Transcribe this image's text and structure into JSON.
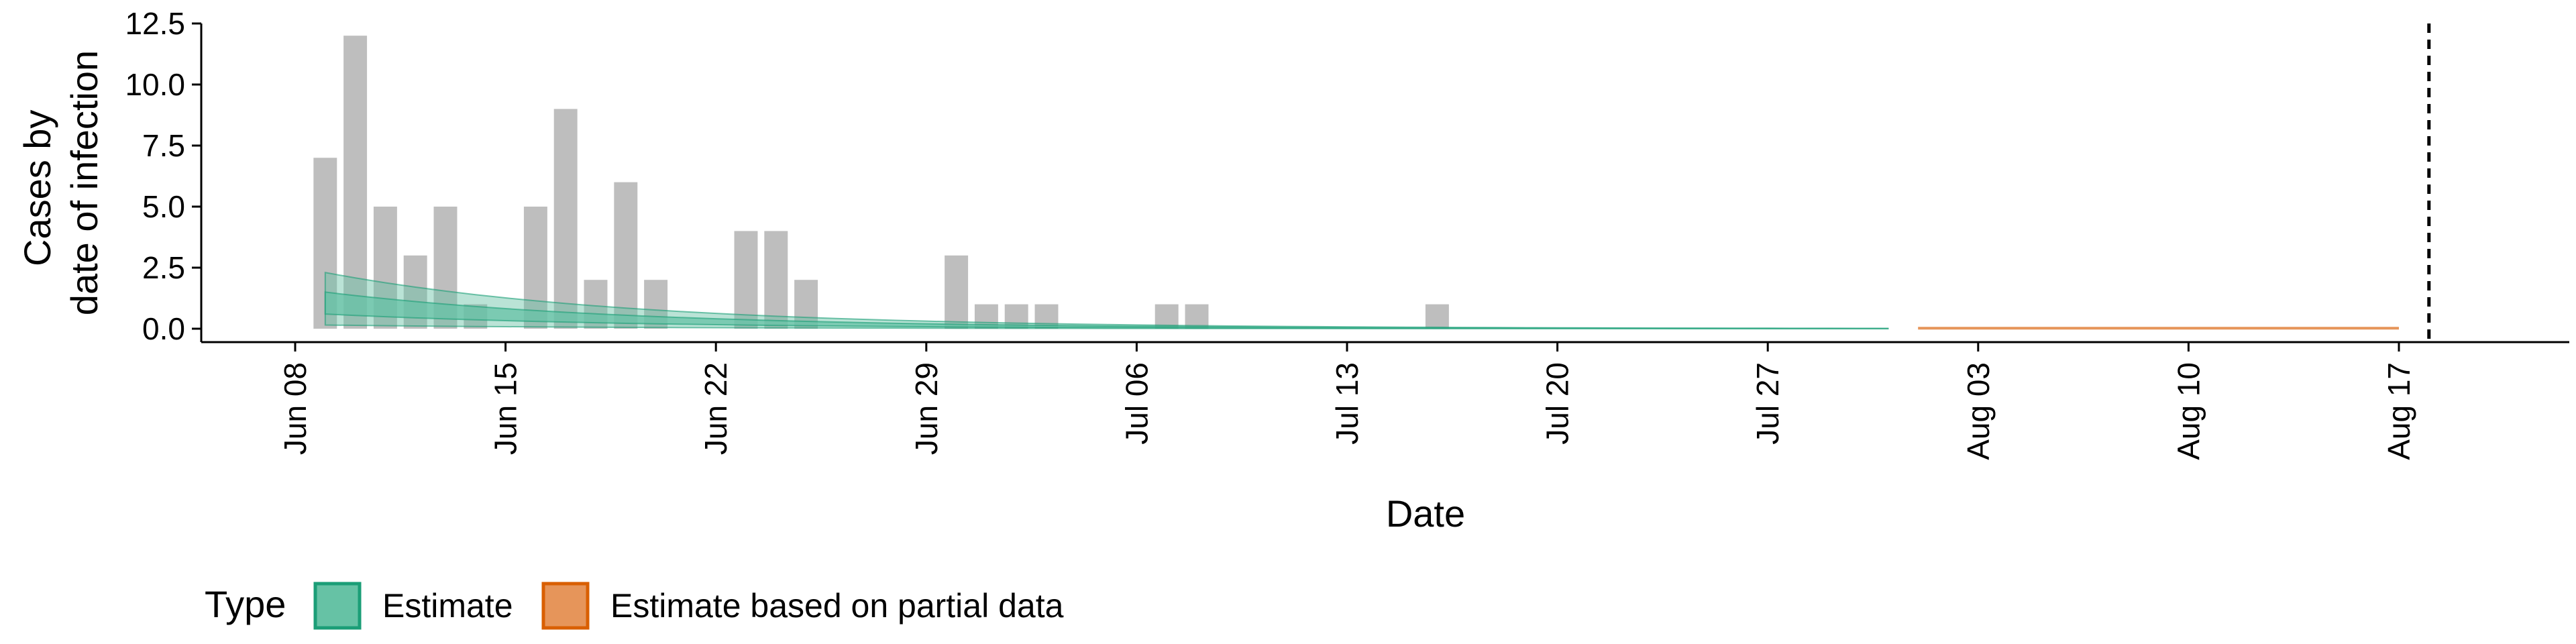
{
  "chart_data": {
    "type": "bar",
    "xlabel": "Date",
    "ylabel_lines": [
      "Cases by",
      "date of infection"
    ],
    "ylim": [
      0,
      12.5
    ],
    "y_ticks": [
      {
        "value": 0,
        "label": "0.0"
      },
      {
        "value": 2.5,
        "label": "2.5"
      },
      {
        "value": 5,
        "label": "5.0"
      },
      {
        "value": 7.5,
        "label": "7.5"
      },
      {
        "value": 10,
        "label": "10.0"
      },
      {
        "value": 12.5,
        "label": "12.5"
      }
    ],
    "x_range": [
      "2020-06-08",
      "2020-08-22"
    ],
    "x_ticks": [
      {
        "date": "2020-06-08",
        "label": "Jun 08"
      },
      {
        "date": "2020-06-15",
        "label": "Jun 15"
      },
      {
        "date": "2020-06-22",
        "label": "Jun 22"
      },
      {
        "date": "2020-06-29",
        "label": "Jun 29"
      },
      {
        "date": "2020-07-06",
        "label": "Jul 06"
      },
      {
        "date": "2020-07-13",
        "label": "Jul 13"
      },
      {
        "date": "2020-07-20",
        "label": "Jul 20"
      },
      {
        "date": "2020-07-27",
        "label": "Jul 27"
      },
      {
        "date": "2020-08-03",
        "label": "Aug 03"
      },
      {
        "date": "2020-08-10",
        "label": "Aug 10"
      },
      {
        "date": "2020-08-17",
        "label": "Aug 17"
      }
    ],
    "reference_line_date": "2020-08-18",
    "bars": {
      "color": "#bebebe",
      "points": [
        {
          "date": "2020-06-09",
          "value": 7
        },
        {
          "date": "2020-06-10",
          "value": 12
        },
        {
          "date": "2020-06-11",
          "value": 5
        },
        {
          "date": "2020-06-12",
          "value": 3
        },
        {
          "date": "2020-06-13",
          "value": 5
        },
        {
          "date": "2020-06-14",
          "value": 1
        },
        {
          "date": "2020-06-16",
          "value": 5
        },
        {
          "date": "2020-06-17",
          "value": 9
        },
        {
          "date": "2020-06-18",
          "value": 2
        },
        {
          "date": "2020-06-19",
          "value": 6
        },
        {
          "date": "2020-06-20",
          "value": 2
        },
        {
          "date": "2020-06-23",
          "value": 4
        },
        {
          "date": "2020-06-24",
          "value": 4
        },
        {
          "date": "2020-06-25",
          "value": 2
        },
        {
          "date": "2020-06-30",
          "value": 3
        },
        {
          "date": "2020-07-01",
          "value": 1
        },
        {
          "date": "2020-07-02",
          "value": 1
        },
        {
          "date": "2020-07-03",
          "value": 1
        },
        {
          "date": "2020-07-07",
          "value": 1
        },
        {
          "date": "2020-07-08",
          "value": 1
        },
        {
          "date": "2020-07-16",
          "value": 1
        }
      ]
    },
    "estimate": {
      "name": "Estimate",
      "color": "#1b9e77",
      "fill": "#66c2a5",
      "start": "2020-06-09",
      "end": "2020-07-31",
      "outer_start": [
        0.15,
        2.3
      ],
      "inner_start": [
        0.6,
        1.5
      ],
      "decay_per_day": 0.1
    },
    "partial_estimate": {
      "name": "Estimate based on partial data",
      "color": "#d95f02",
      "fill": "#e6955a",
      "start": "2020-08-01",
      "end": "2020-08-17",
      "value": 0.02
    },
    "legend": {
      "title": "Type",
      "position": "bottom-left",
      "entries": [
        {
          "label": "Estimate",
          "fill": "#66c2a5",
          "stroke": "#1b9e77"
        },
        {
          "label": "Estimate based on partial data",
          "fill": "#e6955a",
          "stroke": "#d95f02"
        }
      ]
    },
    "grid": false
  }
}
